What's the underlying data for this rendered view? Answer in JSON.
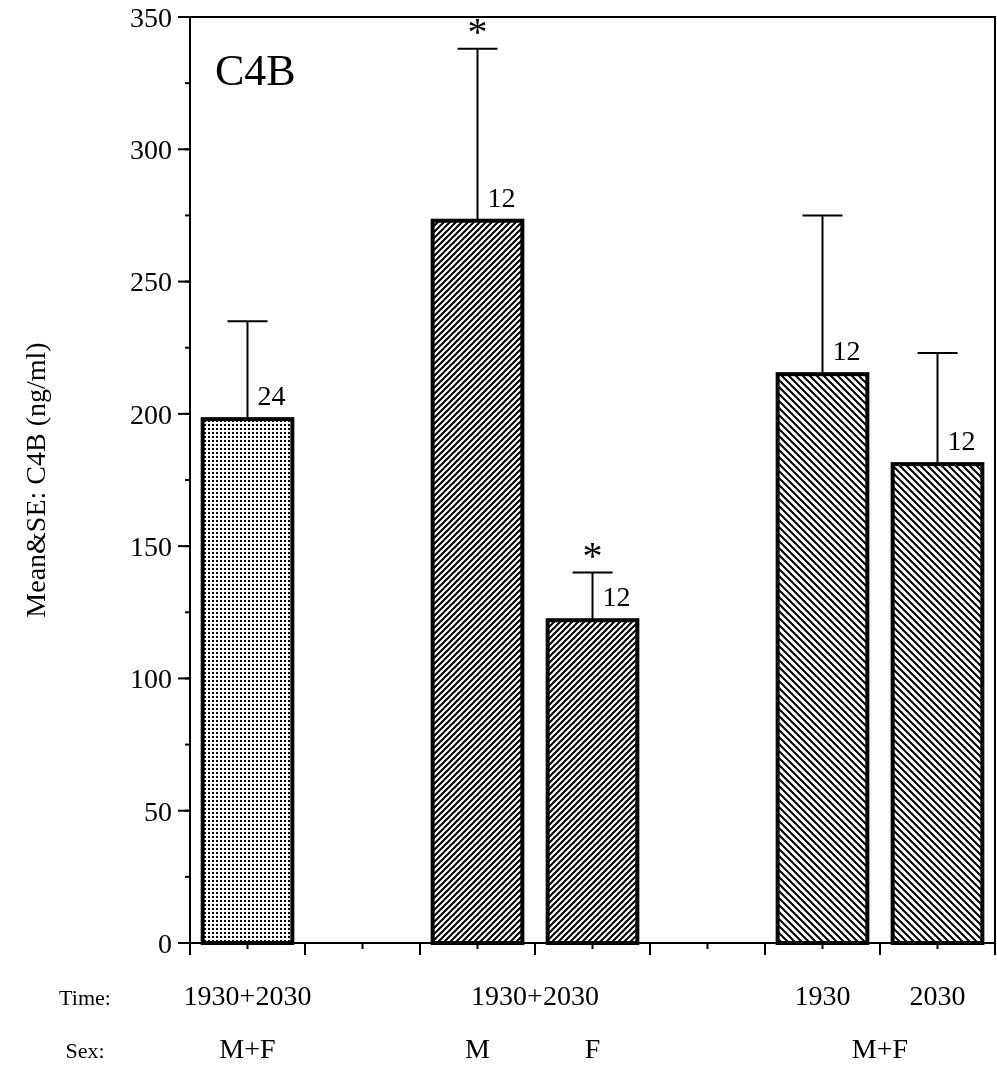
{
  "chart_data": {
    "type": "bar",
    "title": "C4B",
    "ylabel": "Mean&SE: C4B (ng/ml)",
    "categories": [
      "1930+2030",
      null,
      null,
      null,
      null,
      "1930",
      "2030"
    ],
    "values": [
      198,
      null,
      273,
      122,
      null,
      215,
      181
    ],
    "errors": [
      [
        198,
        235
      ],
      null,
      [
        273,
        338
      ],
      [
        122,
        140
      ],
      null,
      [
        215,
        275
      ],
      [
        181,
        223
      ]
    ],
    "color": "#000000",
    "ylim": [
      0,
      350
    ],
    "yticks": [
      0,
      50,
      100,
      150,
      200,
      250,
      300,
      350
    ],
    "grid": false,
    "annotations": [
      "Time:",
      "Sex:",
      "1930+2030",
      "M+F",
      "M",
      "F",
      "M+F",
      "*",
      "*",
      "24",
      "12",
      "12",
      "12",
      "12"
    ]
  }
}
